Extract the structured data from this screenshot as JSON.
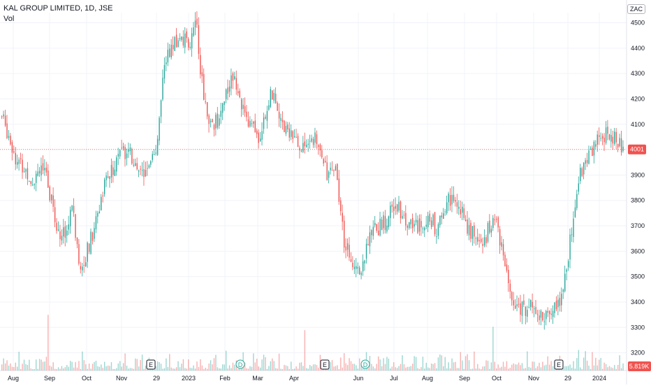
{
  "header": {
    "title": "KAL GROUP LIMITED, 1D, JSE",
    "volume_label": "Vol",
    "currency": "ZAC"
  },
  "colors": {
    "up": "#26a69a",
    "down": "#ef5350",
    "grid": "#f0f3fa",
    "axis_text": "#131722",
    "last_price_bg": "#ef5350"
  },
  "chart_data": {
    "type": "candlestick",
    "x_ticks": [
      "Aug",
      "Sep",
      "Oct",
      "Nov",
      "29",
      "2023",
      "Feb",
      "Mar",
      "Apr",
      "Jun",
      "Jul",
      "Aug",
      "Sep",
      "Oct",
      "Nov",
      "29",
      "2024"
    ],
    "y_ticks": [
      3200,
      3300,
      3400,
      3500,
      3600,
      3700,
      3800,
      3900,
      4000,
      4100,
      4200,
      4300,
      4400,
      4500
    ],
    "y_range": [
      3130,
      4540
    ],
    "last_price": {
      "value": 4001,
      "label": "4001"
    },
    "last_volume": {
      "label": "5.819K"
    },
    "events": [
      {
        "type": "earnings",
        "label": "E",
        "date": "late Nov 2022"
      },
      {
        "type": "dividend",
        "label": "D",
        "date": "Feb 2023"
      },
      {
        "type": "earnings",
        "label": "E",
        "date": "May 2023"
      },
      {
        "type": "dividend",
        "label": "D",
        "date": "Jun 2023"
      },
      {
        "type": "earnings",
        "label": "E",
        "date": "late Nov 2023"
      }
    ],
    "price_path_note": "close prices read from chart at weekly intervals",
    "closes": [
      4130,
      4050,
      3950,
      3920,
      3880,
      3950,
      3850,
      3700,
      3660,
      3780,
      3550,
      3600,
      3700,
      3850,
      3900,
      3980,
      4000,
      3950,
      3900,
      3970,
      4000,
      4350,
      4400,
      4440,
      4420,
      4500,
      4200,
      4100,
      4120,
      4250,
      4300,
      4150,
      4100,
      4050,
      4150,
      4250,
      4100,
      4080,
      4010,
      4020,
      4050,
      4000,
      3900,
      3950,
      3650,
      3580,
      3520,
      3620,
      3680,
      3700,
      3750,
      3780,
      3730,
      3700,
      3710,
      3750,
      3680,
      3780,
      3820,
      3760,
      3700,
      3650,
      3620,
      3720,
      3680,
      3500,
      3400,
      3370,
      3390,
      3350,
      3350,
      3380,
      3420,
      3600,
      3850,
      3950,
      4000,
      4050,
      4070,
      4050,
      4001
    ],
    "volume_series_note": "relative daily volume bars with spikes"
  }
}
